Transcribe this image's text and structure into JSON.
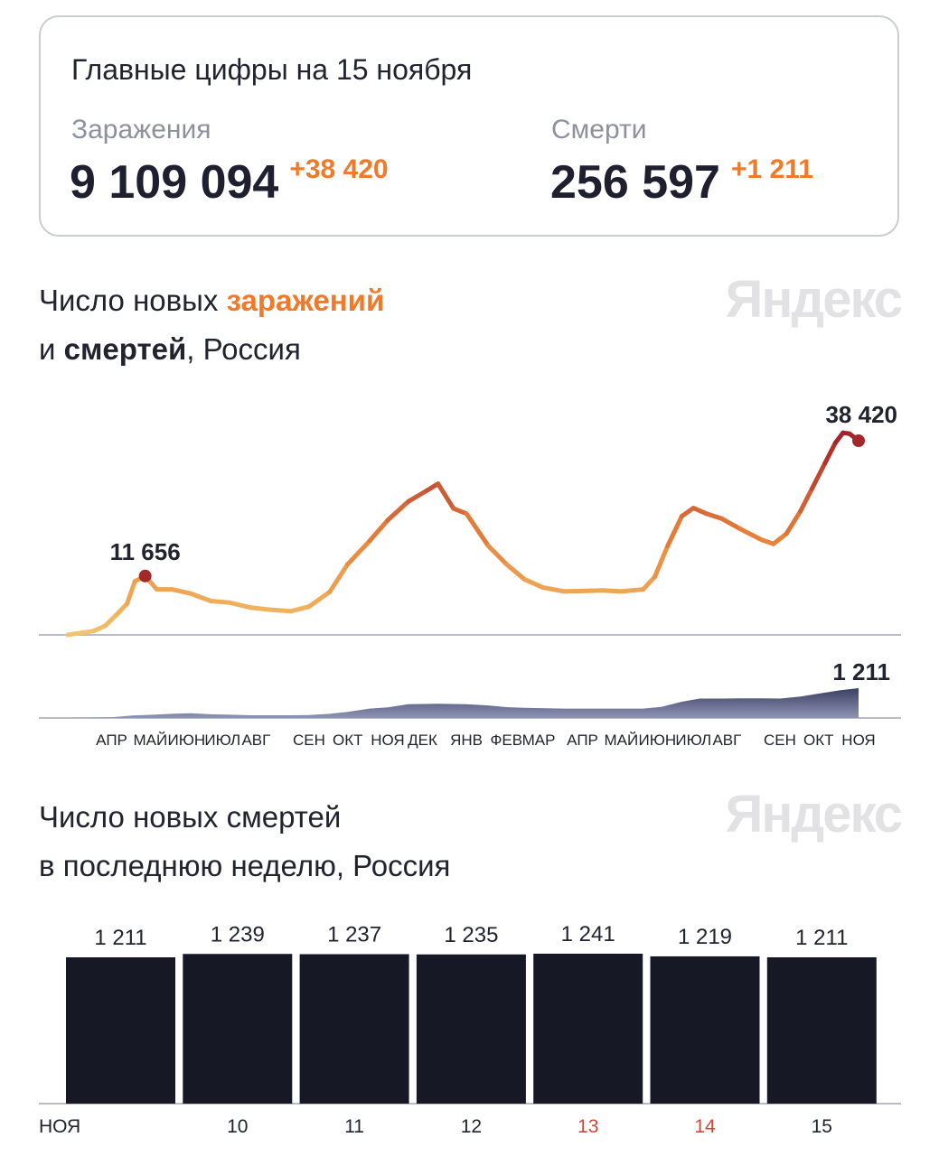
{
  "summary": {
    "title": "Главные цифры на 15 ноября",
    "infections": {
      "label": "Заражения",
      "value": "9 109 094",
      "delta": "+38 420"
    },
    "deaths": {
      "label": "Смерти",
      "value": "256 597",
      "delta": "+1 211"
    }
  },
  "logo_text": "Яндекс",
  "section1": {
    "title_part1": "Число новых ",
    "title_highlight": "заражений",
    "title_part2": "и ",
    "title_bold": "смертей",
    "title_part3": ", Россия"
  },
  "section2": {
    "title_line1": "Число новых смертей",
    "title_line2": "в последнюю неделю, Россия"
  },
  "colors": {
    "accent": "#f07a2a",
    "line_low": "#f2c46d",
    "line_mid": "#e8823a",
    "line_high": "#a8282a",
    "deaths_area": "#3b3f63",
    "bars": "#161925",
    "weekend_label": "#d0463a"
  },
  "chart_data": [
    {
      "type": "line",
      "title": "Число новых заражений и смертей, Россия",
      "series": [
        {
          "name": "заражения",
          "points": [
            [
              "2020-03-12",
              10
            ],
            [
              "2020-04-01",
              770
            ],
            [
              "2020-04-10",
              1800
            ],
            [
              "2020-04-20",
              4300
            ],
            [
              "2020-04-27",
              6200
            ],
            [
              "2020-05-03",
              10600
            ],
            [
              "2020-05-11",
              11656
            ],
            [
              "2020-05-20",
              9000
            ],
            [
              "2020-06-01",
              9000
            ],
            [
              "2020-06-15",
              8200
            ],
            [
              "2020-07-01",
              6700
            ],
            [
              "2020-07-15",
              6400
            ],
            [
              "2020-08-01",
              5400
            ],
            [
              "2020-08-15",
              5000
            ],
            [
              "2020-09-01",
              4700
            ],
            [
              "2020-09-15",
              5600
            ],
            [
              "2020-10-01",
              8500
            ],
            [
              "2020-10-15",
              14000
            ],
            [
              "2020-11-01",
              18600
            ],
            [
              "2020-11-15",
              22700
            ],
            [
              "2020-12-01",
              26400
            ],
            [
              "2020-12-15",
              28500
            ],
            [
              "2020-12-24",
              29900
            ],
            [
              "2021-01-05",
              25000
            ],
            [
              "2021-01-15",
              24000
            ],
            [
              "2021-02-01",
              17600
            ],
            [
              "2021-02-15",
              14000
            ],
            [
              "2021-03-01",
              11000
            ],
            [
              "2021-03-15",
              9400
            ],
            [
              "2021-04-01",
              8600
            ],
            [
              "2021-04-15",
              8700
            ],
            [
              "2021-05-01",
              8800
            ],
            [
              "2021-05-15",
              8600
            ],
            [
              "2021-06-01",
              9000
            ],
            [
              "2021-06-10",
              11500
            ],
            [
              "2021-06-20",
              17600
            ],
            [
              "2021-07-01",
              23500
            ],
            [
              "2021-07-10",
              25100
            ],
            [
              "2021-07-20",
              24000
            ],
            [
              "2021-08-01",
              23000
            ],
            [
              "2021-08-15",
              21000
            ],
            [
              "2021-09-01",
              18800
            ],
            [
              "2021-09-10",
              18000
            ],
            [
              "2021-09-20",
              20000
            ],
            [
              "2021-10-01",
              24500
            ],
            [
              "2021-10-10",
              29000
            ],
            [
              "2021-10-20",
              34000
            ],
            [
              "2021-10-28",
              38000
            ],
            [
              "2021-11-03",
              40000
            ],
            [
              "2021-11-08",
              39800
            ],
            [
              "2021-11-15",
              38420
            ]
          ]
        },
        {
          "name": "смерти",
          "points": [
            [
              "2020-03-12",
              0
            ],
            [
              "2020-04-15",
              30
            ],
            [
              "2020-05-01",
              100
            ],
            [
              "2020-05-15",
              130
            ],
            [
              "2020-06-01",
              170
            ],
            [
              "2020-06-15",
              190
            ],
            [
              "2020-07-01",
              150
            ],
            [
              "2020-08-01",
              110
            ],
            [
              "2020-09-01",
              110
            ],
            [
              "2020-09-15",
              120
            ],
            [
              "2020-10-01",
              170
            ],
            [
              "2020-10-15",
              250
            ],
            [
              "2020-11-01",
              380
            ],
            [
              "2020-11-15",
              430
            ],
            [
              "2020-12-01",
              560
            ],
            [
              "2020-12-24",
              580
            ],
            [
              "2021-01-15",
              560
            ],
            [
              "2021-02-01",
              510
            ],
            [
              "2021-02-15",
              440
            ],
            [
              "2021-03-01",
              410
            ],
            [
              "2021-04-01",
              380
            ],
            [
              "2021-05-01",
              380
            ],
            [
              "2021-06-01",
              380
            ],
            [
              "2021-06-15",
              450
            ],
            [
              "2021-07-01",
              660
            ],
            [
              "2021-07-15",
              790
            ],
            [
              "2021-08-01",
              790
            ],
            [
              "2021-08-15",
              800
            ],
            [
              "2021-09-01",
              800
            ],
            [
              "2021-09-15",
              790
            ],
            [
              "2021-10-01",
              870
            ],
            [
              "2021-10-15",
              990
            ],
            [
              "2021-11-01",
              1130
            ],
            [
              "2021-11-15",
              1211
            ]
          ]
        }
      ],
      "annotations": [
        {
          "label": "11 656",
          "date": "2020-05-11",
          "value": 11656
        },
        {
          "label": "38 420",
          "date": "2021-11-15",
          "value": 38420
        },
        {
          "label": "1 211",
          "date": "2021-11-15",
          "value": 1211
        }
      ],
      "x_tick_labels": [
        [
          "2020-04-15",
          "АПР"
        ],
        [
          "2020-05-15",
          "МАЙ"
        ],
        [
          "2020-06-12",
          "ИЮН"
        ],
        [
          "2020-07-10",
          "ИЮЛ"
        ],
        [
          "2020-08-05",
          "АВГ"
        ],
        [
          "2020-09-15",
          "СЕН"
        ],
        [
          "2020-10-15",
          "ОКТ"
        ],
        [
          "2020-11-15",
          "НОЯ"
        ],
        [
          "2020-12-12",
          "ДЕК"
        ],
        [
          "2021-01-15",
          "ЯНВ"
        ],
        [
          "2021-02-15",
          "ФЕВ"
        ],
        [
          "2021-03-12",
          "МАР"
        ],
        [
          "2021-04-15",
          "АПР"
        ],
        [
          "2021-05-15",
          "МАЙ"
        ],
        [
          "2021-06-12",
          "ИЮН"
        ],
        [
          "2021-07-10",
          "ИЮЛ"
        ],
        [
          "2021-08-05",
          "АВГ"
        ],
        [
          "2021-09-15",
          "СЕН"
        ],
        [
          "2021-10-15",
          "ОКТ"
        ],
        [
          "2021-11-15",
          "НОЯ"
        ]
      ],
      "xlim": [
        "2020-03-12",
        "2021-11-15"
      ],
      "ylim": [
        0,
        38420
      ],
      "ylim_deaths": [
        0,
        1211
      ]
    },
    {
      "type": "bar",
      "title": "Число новых смертей в последнюю неделю, Россия",
      "categories": [
        "НОЯ",
        "10",
        "11",
        "12",
        "13",
        "14",
        "15"
      ],
      "weekend": [
        false,
        false,
        false,
        false,
        true,
        true,
        false
      ],
      "values": [
        1211,
        1239,
        1237,
        1235,
        1241,
        1219,
        1211
      ],
      "value_labels": [
        "1 211",
        "1 239",
        "1 237",
        "1 235",
        "1 241",
        "1 219",
        "1 211"
      ],
      "ylim": [
        0,
        1241
      ]
    }
  ]
}
